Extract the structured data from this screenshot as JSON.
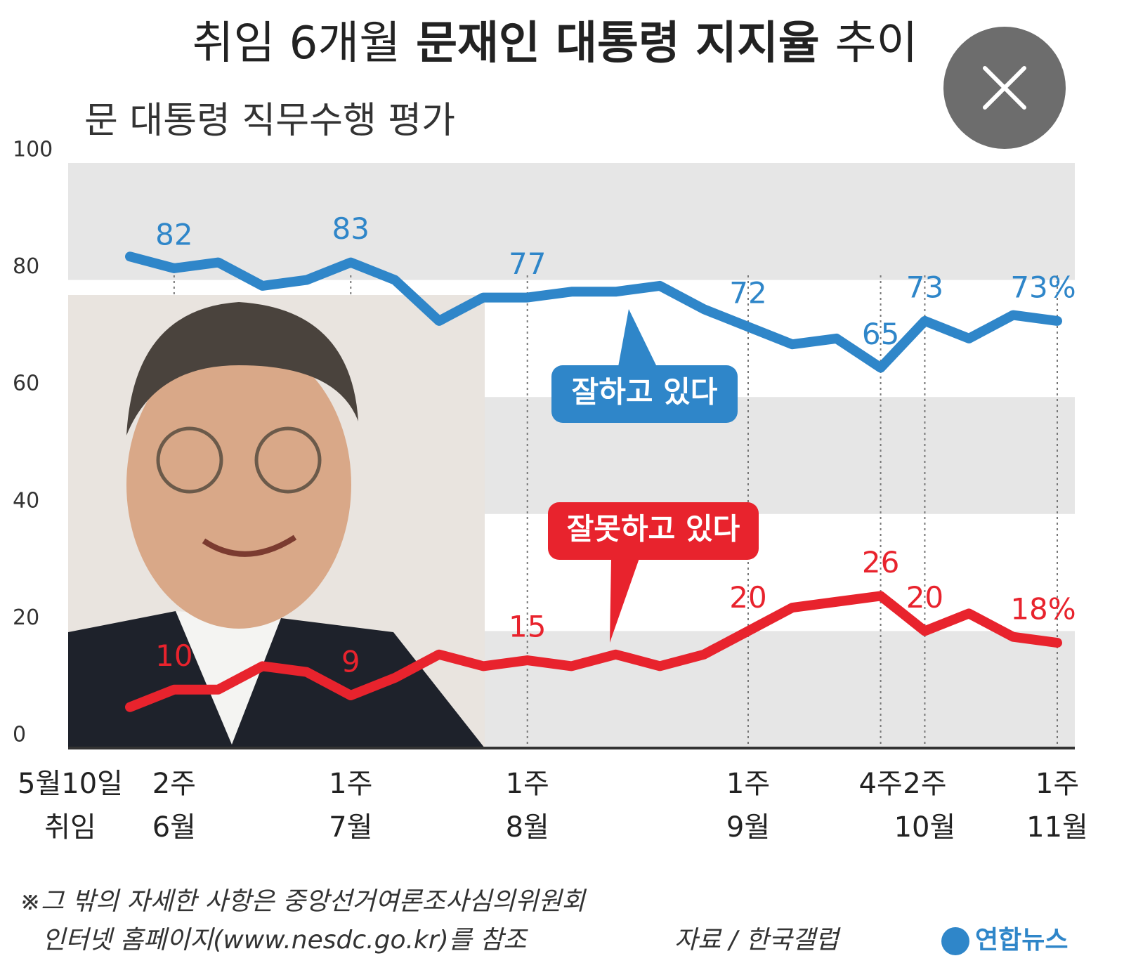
{
  "title_parts": [
    "취임 6개월",
    "문재인 대통령 지지율",
    "추이"
  ],
  "chart_data": {
    "type": "line",
    "subtitle": "문 대통령 직무수행 평가",
    "start_label": [
      "5월10일",
      "취임"
    ],
    "categories": [
      null,
      "2주",
      null,
      null,
      null,
      "1주",
      null,
      null,
      null,
      "1주",
      null,
      null,
      null,
      null,
      "1주",
      null,
      null,
      "4주",
      "2주",
      null,
      null,
      "1주"
    ],
    "months": [
      null,
      "6월",
      null,
      null,
      null,
      "7월",
      null,
      null,
      null,
      "8월",
      null,
      null,
      null,
      null,
      "9월",
      null,
      null,
      null,
      "10월",
      null,
      null,
      "11월"
    ],
    "series": [
      {
        "name": "잘하고 있다",
        "color": "#2f86c9",
        "values": [
          84,
          82,
          83,
          79,
          80,
          83,
          80,
          73,
          77,
          77,
          78,
          78,
          79,
          75,
          72,
          69,
          70,
          65,
          73,
          70,
          74,
          73
        ],
        "value_labels": [
          null,
          "82",
          null,
          null,
          null,
          "83",
          null,
          null,
          null,
          "77",
          null,
          null,
          null,
          null,
          "72",
          null,
          null,
          "65",
          "73",
          null,
          null,
          "73%"
        ]
      },
      {
        "name": "잘못하고 있다",
        "color": "#e8232d",
        "values": [
          7,
          10,
          10,
          14,
          13,
          9,
          12,
          16,
          14,
          15,
          14,
          16,
          14,
          16,
          20,
          24,
          25,
          26,
          20,
          23,
          19,
          18
        ],
        "value_labels": [
          null,
          "10",
          null,
          null,
          null,
          "9",
          null,
          null,
          null,
          "15",
          null,
          null,
          null,
          null,
          "20",
          null,
          null,
          "26",
          "20",
          null,
          null,
          "18%"
        ]
      }
    ],
    "ylim": [
      0,
      100
    ],
    "yticks": [
      0,
      20,
      40,
      60,
      80,
      100
    ],
    "grid": "bands"
  },
  "footnote": [
    "※그 밖의 자세한 사항은 중앙선거여론조사심의위원회",
    "인터넷 홈페이지(www.nesdc.go.kr)를 참조"
  ],
  "source": "자료 / 한국갤럽",
  "logo": "연합뉴스"
}
